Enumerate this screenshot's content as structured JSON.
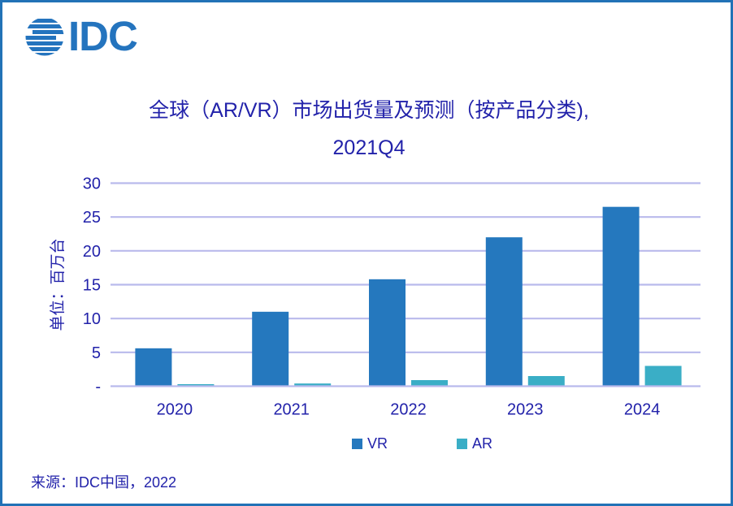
{
  "logo": {
    "text": "IDC"
  },
  "title": {
    "line1": "全球（AR/VR）市场出货量及预测（按产品分类),",
    "line2": "2021Q4"
  },
  "chart_data": {
    "type": "bar",
    "title": "全球（AR/VR）市场出货量及预测（按产品分类), 2021Q4",
    "categories": [
      "2020",
      "2021",
      "2022",
      "2023",
      "2024"
    ],
    "series": [
      {
        "name": "VR",
        "color": "#2578BE",
        "values": [
          5.6,
          11.0,
          15.8,
          22.0,
          26.5
        ]
      },
      {
        "name": "AR",
        "color": "#3AAEC6",
        "values": [
          0.3,
          0.4,
          0.9,
          1.5,
          3.0
        ]
      }
    ],
    "xlabel": "",
    "ylabel": "单位：百万台",
    "ylim": [
      0,
      30
    ],
    "yticks": [
      0,
      5,
      10,
      15,
      20,
      25,
      30
    ],
    "ytick_labels": [
      "-",
      "5",
      "10",
      "15",
      "20",
      "25",
      "30"
    ],
    "grid": true,
    "legend_position": "bottom"
  },
  "source": {
    "text": "来源：IDC中国，2022"
  },
  "colors": {
    "vr": "#2578BE",
    "ar": "#3AAEC6",
    "gridline": "#B9BAEC",
    "text": "#2222AA",
    "border": "#2272B6",
    "logo": "#2474BE",
    "background": "#FFFFFF"
  }
}
